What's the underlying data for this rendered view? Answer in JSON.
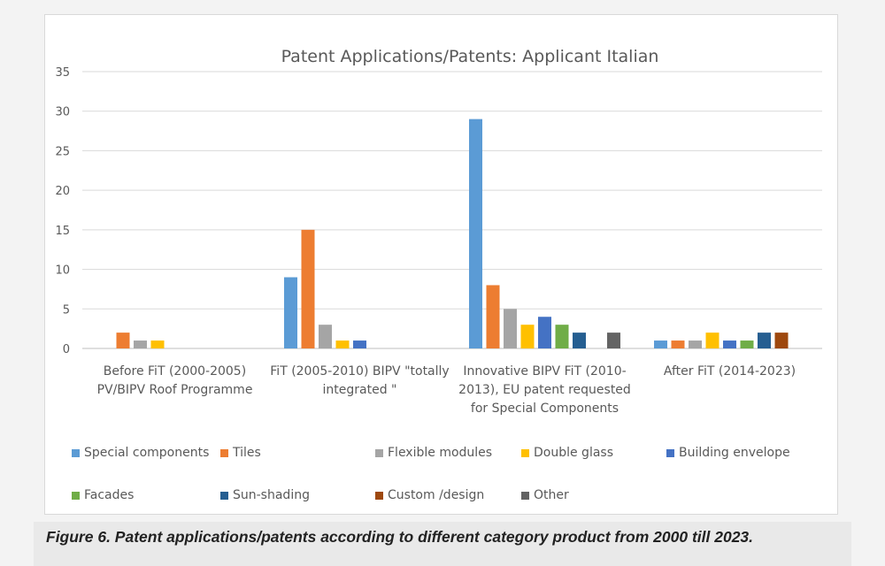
{
  "chart_data": {
    "type": "bar",
    "title": "Patent Applications/Patents: Applicant Italian",
    "xlabel": "",
    "ylabel": "",
    "ylim": [
      0,
      35
    ],
    "yticks": [
      0,
      5,
      10,
      15,
      20,
      25,
      30,
      35
    ],
    "grid": true,
    "legend_position": "bottom",
    "categories": [
      [
        "Before FiT (2000-2005)",
        "PV/BIPV Roof Programme"
      ],
      [
        "FiT (2005-2010) BIPV \"totally",
        "integrated \""
      ],
      [
        "Innovative BIPV FiT (2010-",
        "2013), EU patent requested",
        "for Special Components"
      ],
      [
        "After FiT (2014-2023)"
      ]
    ],
    "series": [
      {
        "name": "Special components",
        "color": "#5b9bd5",
        "values": [
          0,
          9,
          29,
          1
        ]
      },
      {
        "name": "Tiles",
        "color": "#ed7d31",
        "values": [
          2,
          15,
          8,
          1
        ]
      },
      {
        "name": "Flexible modules",
        "color": "#a5a5a5",
        "values": [
          1,
          3,
          5,
          1
        ]
      },
      {
        "name": "Double glass",
        "color": "#ffc000",
        "values": [
          1,
          1,
          3,
          2
        ]
      },
      {
        "name": "Building envelope",
        "color": "#4472c4",
        "values": [
          0,
          1,
          4,
          1
        ]
      },
      {
        "name": "Facades",
        "color": "#70ad47",
        "values": [
          0,
          0,
          3,
          1
        ]
      },
      {
        "name": "Sun-shading",
        "color": "#255e91",
        "values": [
          0,
          0,
          2,
          2
        ]
      },
      {
        "name": "Custom /design",
        "color": "#9e480e",
        "values": [
          0,
          0,
          0,
          2
        ]
      },
      {
        "name": "Other",
        "color": "#636363",
        "values": [
          0,
          0,
          2,
          0
        ]
      }
    ]
  },
  "caption": "Figure 6. Patent applications/patents according to different category product from 2000 till 2023."
}
